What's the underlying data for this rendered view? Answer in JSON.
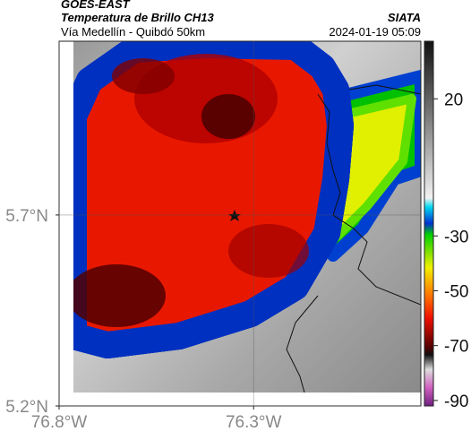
{
  "header": {
    "title": "GOES-EAST",
    "subtitle": "Temperatura de Brillo CH13",
    "region": "Vía Medellín - Quibdó 50km",
    "source": "SIATA",
    "timestamp": "2024-01-19 05:09"
  },
  "map": {
    "xlim": [
      -76.8,
      -75.87
    ],
    "ylim": [
      5.2,
      6.155
    ],
    "xticks": [
      {
        "value": -76.8,
        "label": "76.8°W"
      },
      {
        "value": -76.3,
        "label": "76.3°W"
      }
    ],
    "yticks": [
      {
        "value": 5.2,
        "label": "5.2°N"
      },
      {
        "value": 5.7,
        "label": "5.7°N"
      }
    ],
    "grid": true
  },
  "colorbar": {
    "lim": [
      -92,
      41
    ],
    "ticks": [
      20,
      -30,
      -50,
      -70,
      -90
    ]
  }
}
